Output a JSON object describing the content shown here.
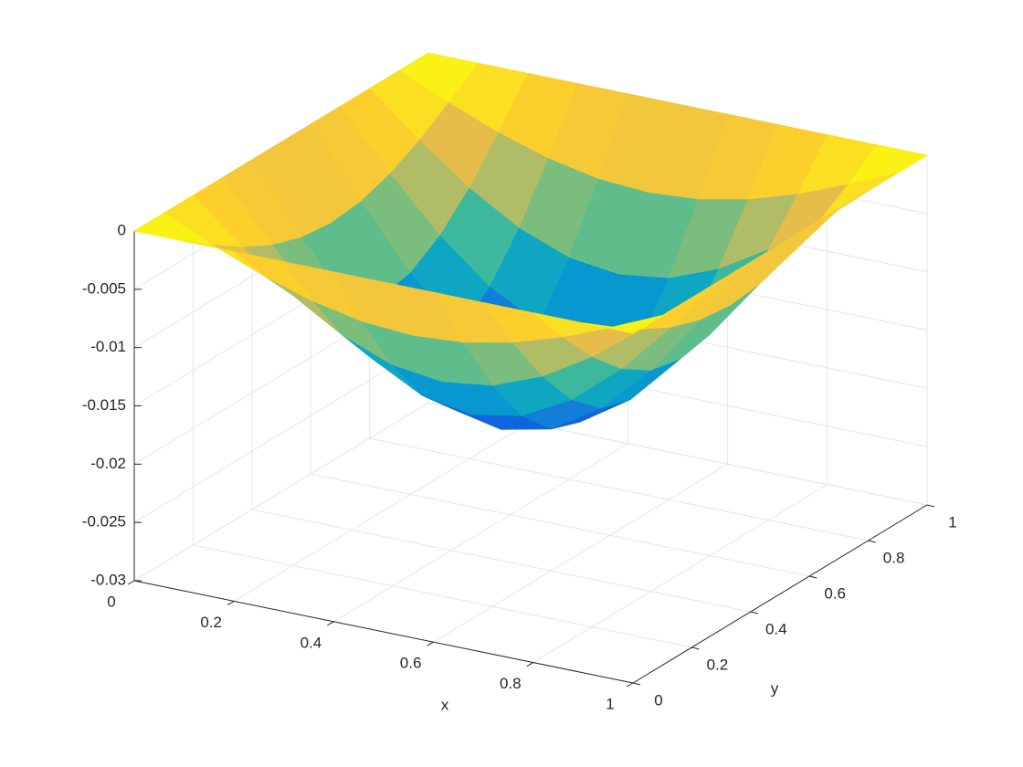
{
  "chart_data": {
    "type": "surface",
    "colormap": "parula",
    "grid": true,
    "xlabel": "x",
    "ylabel": "y",
    "x": [
      0,
      0.1,
      0.2,
      0.3,
      0.4,
      0.5,
      0.6,
      0.7,
      0.8,
      0.9,
      1
    ],
    "y": [
      0,
      0.1,
      0.2,
      0.3,
      0.4,
      0.5,
      0.6,
      0.7,
      0.8,
      0.9,
      1
    ],
    "z": [
      [
        0,
        0,
        0,
        0,
        0,
        0,
        0,
        0,
        0,
        0,
        0
      ],
      [
        0,
        -0.00188,
        -0.00358,
        -0.00492,
        -0.00579,
        -0.00609,
        -0.00579,
        -0.00492,
        -0.00358,
        -0.00188,
        0
      ],
      [
        0,
        -0.00358,
        -0.00681,
        -0.00937,
        -0.01102,
        -0.01158,
        -0.01102,
        -0.00937,
        -0.00681,
        -0.00358,
        0
      ],
      [
        0,
        -0.00492,
        -0.00937,
        -0.01289,
        -0.01516,
        -0.01594,
        -0.01516,
        -0.01289,
        -0.00937,
        -0.00492,
        0
      ],
      [
        0,
        -0.00579,
        -0.01102,
        -0.01516,
        -0.01782,
        -0.01874,
        -0.01782,
        -0.01516,
        -0.01102,
        -0.00579,
        0
      ],
      [
        0,
        -0.00609,
        -0.01158,
        -0.01594,
        -0.01873,
        -0.0197,
        -0.01873,
        -0.01594,
        -0.01158,
        -0.00609,
        0
      ],
      [
        0,
        -0.00579,
        -0.01102,
        -0.01516,
        -0.01782,
        -0.01874,
        -0.01782,
        -0.01516,
        -0.01102,
        -0.00579,
        0
      ],
      [
        0,
        -0.00492,
        -0.00937,
        -0.01289,
        -0.01516,
        -0.01594,
        -0.01516,
        -0.01289,
        -0.00937,
        -0.00492,
        0
      ],
      [
        0,
        -0.00358,
        -0.00681,
        -0.00937,
        -0.01102,
        -0.01158,
        -0.01102,
        -0.00937,
        -0.00681,
        -0.00358,
        0
      ],
      [
        0,
        -0.00188,
        -0.00358,
        -0.00492,
        -0.00579,
        -0.00609,
        -0.00579,
        -0.00492,
        -0.00358,
        -0.00188,
        0
      ],
      [
        0,
        0,
        0,
        0,
        0,
        0,
        0,
        0,
        0,
        0,
        0
      ]
    ],
    "xlim": [
      0,
      1
    ],
    "ylim": [
      0,
      1
    ],
    "zlim": [
      -0.03,
      0
    ],
    "xticks": [
      0,
      0.2,
      0.4,
      0.6,
      0.8,
      1
    ],
    "yticks": [
      0,
      0.2,
      0.4,
      0.6,
      0.8,
      1
    ],
    "zticks": [
      -0.03,
      -0.025,
      -0.02,
      -0.015,
      -0.01,
      -0.005,
      0
    ]
  }
}
